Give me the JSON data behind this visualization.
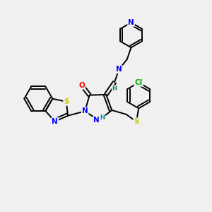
{
  "bg_color": "#f0f0f0",
  "bond_color": "#000000",
  "bond_width": 1.4,
  "atom_colors": {
    "S": "#cccc00",
    "N": "#0000ff",
    "O": "#ff0000",
    "Cl": "#00aa00",
    "H": "#008080",
    "C": "#000000"
  },
  "font_size": 7.5,
  "fig_size": [
    3.0,
    3.0
  ],
  "dpi": 100
}
